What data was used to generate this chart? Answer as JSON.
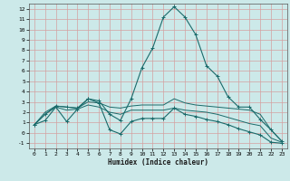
{
  "xlabel": "Humidex (Indice chaleur)",
  "bg_color": "#cce9e9",
  "grid_color": "#add4d4",
  "line_color": "#1a6b6b",
  "xlim": [
    -0.5,
    23.5
  ],
  "ylim": [
    -1.5,
    12.5
  ],
  "xticks": [
    0,
    1,
    2,
    3,
    4,
    5,
    6,
    7,
    8,
    9,
    10,
    11,
    12,
    13,
    14,
    15,
    16,
    17,
    18,
    19,
    20,
    21,
    22,
    23
  ],
  "yticks": [
    -1,
    0,
    1,
    2,
    3,
    4,
    5,
    6,
    7,
    8,
    9,
    10,
    11,
    12
  ],
  "series": [
    {
      "x": [
        0,
        1,
        2,
        3,
        4,
        5,
        6,
        7,
        8,
        9,
        10,
        11,
        12,
        13,
        14,
        15,
        16,
        17,
        18,
        19,
        20,
        21,
        22,
        23
      ],
      "y": [
        0.8,
        1.8,
        2.6,
        2.5,
        2.4,
        3.3,
        3.1,
        1.8,
        1.2,
        3.3,
        6.3,
        8.2,
        11.2,
        12.2,
        11.2,
        9.5,
        6.5,
        5.5,
        3.5,
        2.5,
        2.5,
        1.3,
        0.3,
        -0.8
      ],
      "marker": true
    },
    {
      "x": [
        0,
        1,
        2,
        3,
        4,
        5,
        6,
        7,
        8,
        9,
        10,
        11,
        12,
        13,
        14,
        15,
        16,
        17,
        18,
        19,
        20,
        21,
        22,
        23
      ],
      "y": [
        0.8,
        2.0,
        2.6,
        2.5,
        2.4,
        3.0,
        2.9,
        2.5,
        2.4,
        2.6,
        2.7,
        2.7,
        2.7,
        3.3,
        2.9,
        2.7,
        2.6,
        2.5,
        2.4,
        2.3,
        2.2,
        1.8,
        0.3,
        -0.8
      ],
      "marker": false
    },
    {
      "x": [
        0,
        1,
        2,
        3,
        4,
        5,
        6,
        7,
        8,
        9,
        10,
        11,
        12,
        13,
        14,
        15,
        16,
        17,
        18,
        19,
        20,
        21,
        22,
        23
      ],
      "y": [
        0.8,
        1.8,
        2.5,
        2.2,
        2.3,
        2.7,
        2.5,
        2.0,
        1.8,
        2.2,
        2.2,
        2.2,
        2.2,
        2.4,
        2.2,
        2.1,
        2.0,
        1.8,
        1.5,
        1.2,
        0.9,
        0.7,
        -0.5,
        -0.9
      ],
      "marker": false
    },
    {
      "x": [
        0,
        1,
        2,
        3,
        4,
        5,
        6,
        7,
        8,
        9,
        10,
        11,
        12,
        13,
        14,
        15,
        16,
        17,
        18,
        19,
        20,
        21,
        22,
        23
      ],
      "y": [
        0.8,
        1.2,
        2.5,
        1.1,
        2.3,
        3.3,
        2.9,
        0.3,
        -0.1,
        1.1,
        1.4,
        1.4,
        1.4,
        2.4,
        1.8,
        1.6,
        1.3,
        1.1,
        0.8,
        0.4,
        0.1,
        -0.2,
        -0.9,
        -1.0
      ],
      "marker": true
    }
  ]
}
